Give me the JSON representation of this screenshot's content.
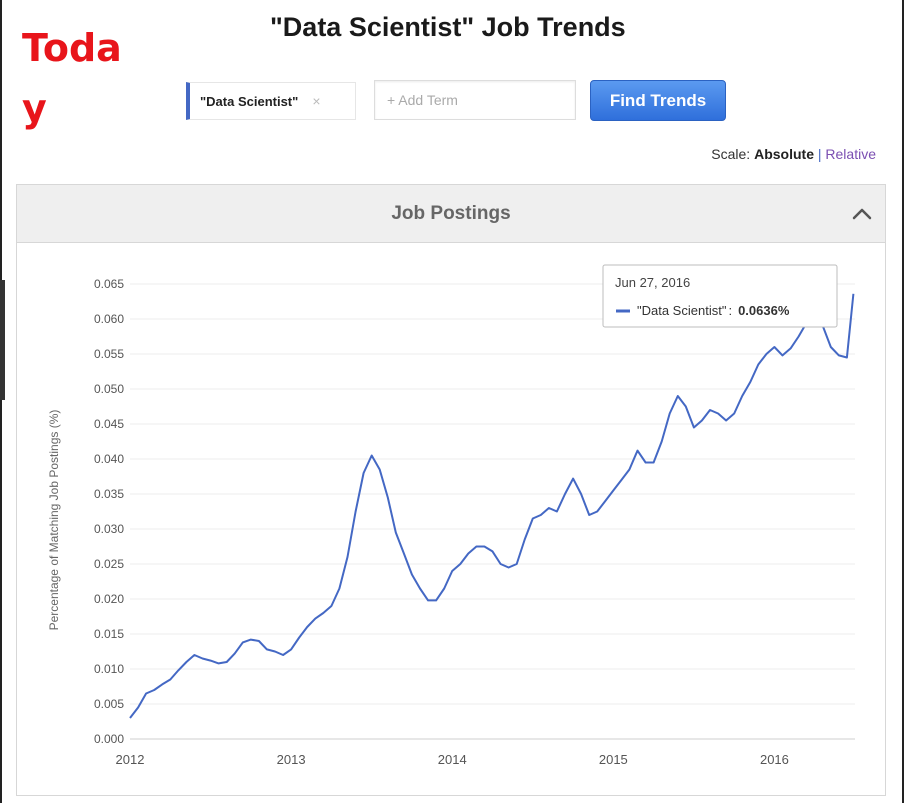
{
  "overlay_text": "Today",
  "title": "\"Data Scientist\" Job Trends",
  "search": {
    "term": "\"Data Scientist\"",
    "close_glyph": "×",
    "add_term_placeholder": "+ Add Term",
    "button_label": "Find Trends"
  },
  "scale": {
    "label": "Scale:",
    "absolute": "Absolute",
    "separator": "|",
    "relative": "Relative"
  },
  "panel": {
    "title": "Job Postings",
    "collapse_icon": "chevron-up-icon"
  },
  "colors": {
    "line": "#4468c4",
    "button": "#3a7de6",
    "overlay_text": "#e8151b"
  },
  "chart_data": {
    "type": "line",
    "title": "",
    "xlabel": "",
    "ylabel": "Percentage of Matching Job Postings (%)",
    "xlim": [
      2012.0,
      2016.5
    ],
    "ylim": [
      0.0,
      0.065
    ],
    "x_ticks": [
      "2012",
      "2013",
      "2014",
      "2015",
      "2016"
    ],
    "y_ticks": [
      "0.000",
      "0.005",
      "0.010",
      "0.015",
      "0.020",
      "0.025",
      "0.030",
      "0.035",
      "0.040",
      "0.045",
      "0.050",
      "0.055",
      "0.060",
      "0.065"
    ],
    "grid": true,
    "series": [
      {
        "name": "\"Data Scientist\"",
        "x": [
          2012.0,
          2012.05,
          2012.1,
          2012.15,
          2012.2,
          2012.25,
          2012.3,
          2012.35,
          2012.4,
          2012.45,
          2012.5,
          2012.55,
          2012.6,
          2012.65,
          2012.7,
          2012.75,
          2012.8,
          2012.85,
          2012.9,
          2012.95,
          2013.0,
          2013.05,
          2013.1,
          2013.15,
          2013.2,
          2013.25,
          2013.3,
          2013.35,
          2013.4,
          2013.45,
          2013.5,
          2013.55,
          2013.6,
          2013.65,
          2013.7,
          2013.75,
          2013.8,
          2013.85,
          2013.9,
          2013.95,
          2014.0,
          2014.05,
          2014.1,
          2014.15,
          2014.2,
          2014.25,
          2014.3,
          2014.35,
          2014.4,
          2014.45,
          2014.5,
          2014.55,
          2014.6,
          2014.65,
          2014.7,
          2014.75,
          2014.8,
          2014.85,
          2014.9,
          2014.95,
          2015.0,
          2015.05,
          2015.1,
          2015.15,
          2015.2,
          2015.25,
          2015.3,
          2015.35,
          2015.4,
          2015.45,
          2015.5,
          2015.55,
          2015.6,
          2015.65,
          2015.7,
          2015.75,
          2015.8,
          2015.85,
          2015.9,
          2015.95,
          2016.0,
          2016.05,
          2016.1,
          2016.15,
          2016.2,
          2016.25,
          2016.3,
          2016.35,
          2016.4,
          2016.45,
          2016.49
        ],
        "values": [
          0.003,
          0.0045,
          0.0065,
          0.007,
          0.0078,
          0.0085,
          0.0098,
          0.011,
          0.012,
          0.0115,
          0.0112,
          0.0108,
          0.011,
          0.0122,
          0.0138,
          0.0142,
          0.014,
          0.0128,
          0.0125,
          0.012,
          0.0128,
          0.0145,
          0.016,
          0.0172,
          0.018,
          0.019,
          0.0215,
          0.026,
          0.0325,
          0.038,
          0.0405,
          0.0385,
          0.0345,
          0.0295,
          0.0265,
          0.0235,
          0.0215,
          0.0198,
          0.0198,
          0.0215,
          0.024,
          0.025,
          0.0265,
          0.0275,
          0.0275,
          0.0268,
          0.025,
          0.0245,
          0.025,
          0.0285,
          0.0315,
          0.032,
          0.033,
          0.0325,
          0.035,
          0.0372,
          0.035,
          0.032,
          0.0325,
          0.034,
          0.0355,
          0.037,
          0.0385,
          0.0412,
          0.0395,
          0.0395,
          0.0425,
          0.0465,
          0.049,
          0.0475,
          0.0445,
          0.0455,
          0.047,
          0.0465,
          0.0455,
          0.0465,
          0.049,
          0.051,
          0.0535,
          0.055,
          0.056,
          0.0548,
          0.0558,
          0.0575,
          0.0595,
          0.062,
          0.059,
          0.056,
          0.0548,
          0.0545,
          0.0636
        ]
      }
    ],
    "tooltip": {
      "date": "Jun 27, 2016",
      "series": "\"Data Scientist\"",
      "separator": ":",
      "value": "0.0636%"
    }
  }
}
